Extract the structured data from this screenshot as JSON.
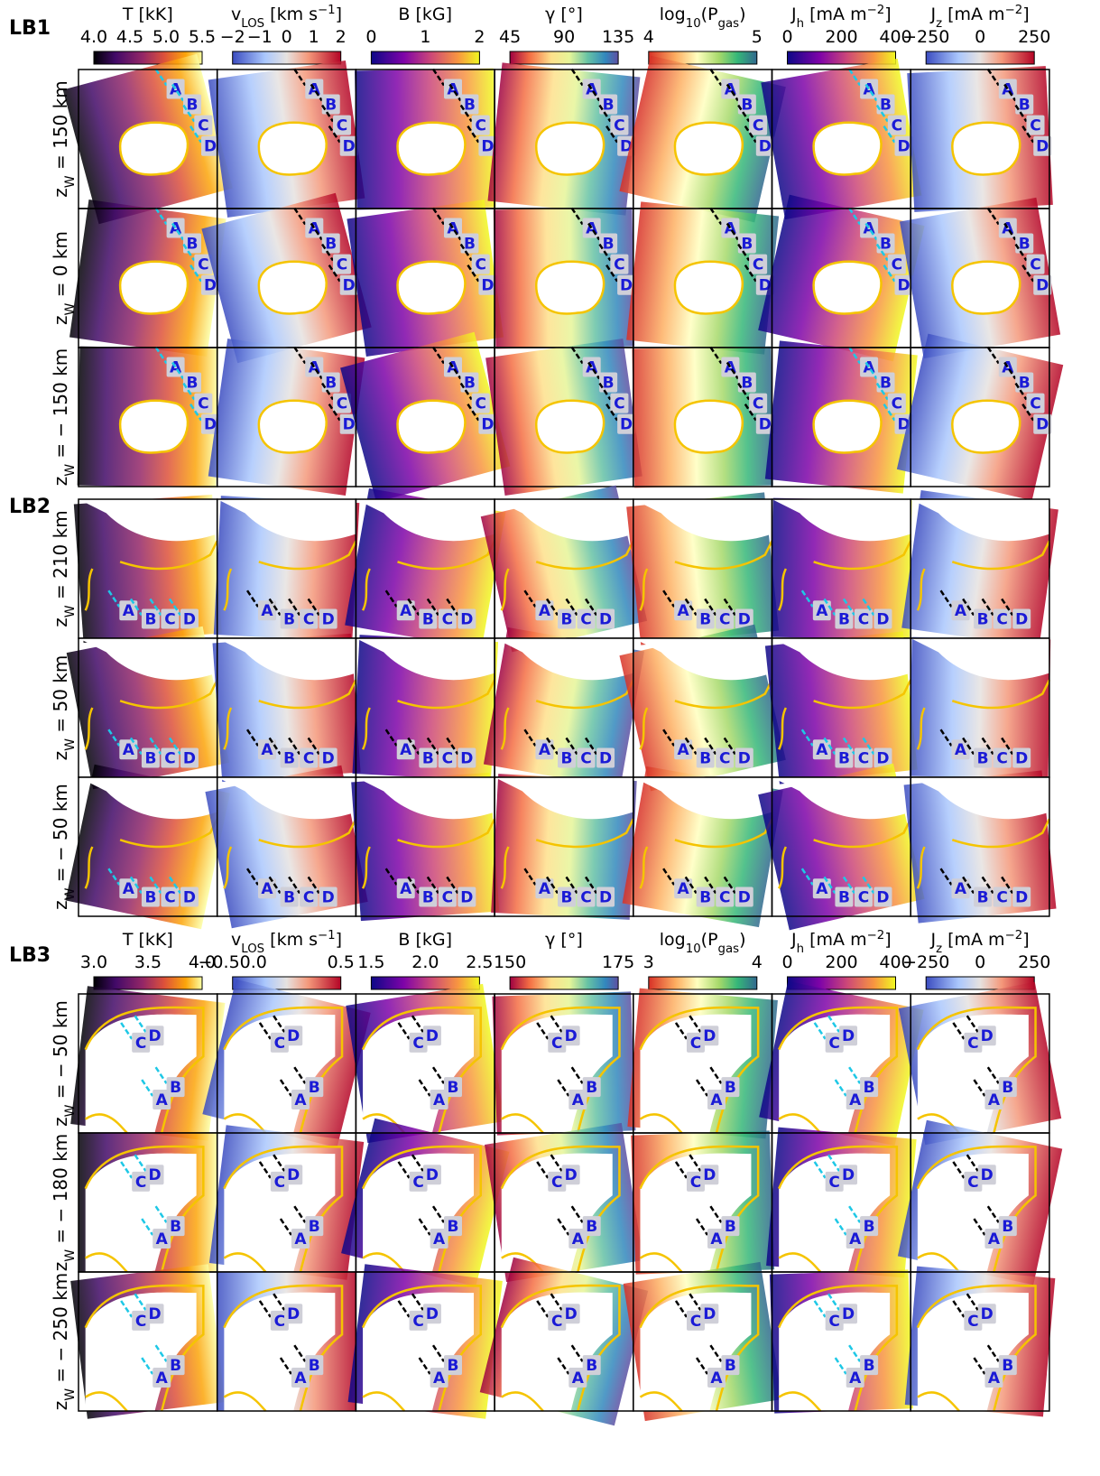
{
  "sections": [
    {
      "label": "LB1",
      "columns": [
        {
          "title": [
            "T [kK]"
          ],
          "ticks": [
            "4.0",
            "4.5",
            "5.0",
            "5.5"
          ]
        },
        {
          "title": [
            "v",
            {
              "sub": "LOS"
            },
            " [km s",
            {
              "sup": "−1"
            },
            "]"
          ],
          "ticks": [
            "−2",
            "−1",
            "0",
            "1",
            "2"
          ]
        },
        {
          "title": [
            "B [kG]"
          ],
          "ticks": [
            "0",
            "1",
            "2"
          ]
        },
        {
          "title": [
            "γ [°]"
          ],
          "ticks": [
            "45",
            "90",
            "135"
          ]
        },
        {
          "title": [
            "log",
            {
              "sub": "10"
            },
            "(P",
            {
              "sub": "gas"
            },
            ")"
          ],
          "ticks": [
            "4",
            "5"
          ]
        },
        {
          "title": [
            "J",
            {
              "sub": "h"
            },
            " [mA m",
            {
              "sup": "−2"
            },
            "]"
          ],
          "ticks": [
            "0",
            "200",
            "400"
          ]
        },
        {
          "title": [
            "J",
            {
              "sub": "z"
            },
            " [mA m",
            {
              "sup": "−2"
            },
            "]"
          ],
          "ticks": [
            "−250",
            "0",
            "250"
          ]
        }
      ],
      "rows": [
        [
          "z",
          {
            "sub": "W"
          },
          " = 150 km"
        ],
        [
          "z",
          {
            "sub": "W"
          },
          " = 0 km"
        ],
        [
          "z",
          {
            "sub": "W"
          },
          " = − 150 km"
        ]
      ]
    },
    {
      "label": "LB2",
      "rows": [
        [
          "z",
          {
            "sub": "W"
          },
          " = 210 km"
        ],
        [
          "z",
          {
            "sub": "W"
          },
          " = 50 km"
        ],
        [
          "z",
          {
            "sub": "W"
          },
          " = − 50 km"
        ]
      ]
    },
    {
      "label": "LB3",
      "columns": [
        {
          "title": [
            "T [kK]"
          ],
          "ticks": [
            "3.0",
            "3.5",
            "4.0"
          ]
        },
        {
          "title": [
            "v",
            {
              "sub": "LOS"
            },
            " [km s",
            {
              "sup": "−1"
            },
            "]"
          ],
          "ticks": [
            "−0.50.0",
            "0.5"
          ]
        },
        {
          "title": [
            "B [kG]"
          ],
          "ticks": [
            "1.5",
            "2.0",
            "2.5"
          ]
        },
        {
          "title": [
            "γ [°]"
          ],
          "ticks": [
            "150",
            "175"
          ]
        },
        {
          "title": [
            "log",
            {
              "sub": "10"
            },
            "(P",
            {
              "sub": "gas"
            },
            ")"
          ],
          "ticks": [
            "3",
            "4"
          ]
        },
        {
          "title": [
            "J",
            {
              "sub": "h"
            },
            " [mA m",
            {
              "sup": "−2"
            },
            "]"
          ],
          "ticks": [
            "0",
            "200",
            "400"
          ]
        },
        {
          "title": [
            "J",
            {
              "sub": "z"
            },
            " [mA m",
            {
              "sup": "−2"
            },
            "]"
          ],
          "ticks": [
            "−250",
            "0",
            "250"
          ]
        }
      ],
      "rows": [
        [
          "z",
          {
            "sub": "W"
          },
          " = − 50 km"
        ],
        [
          "z",
          {
            "sub": "W"
          },
          " = − 180 km"
        ],
        [
          "z",
          {
            "sub": "W"
          },
          " = − 250 km"
        ]
      ]
    }
  ],
  "panel_labels": [
    "A",
    "B",
    "C",
    "D"
  ]
}
